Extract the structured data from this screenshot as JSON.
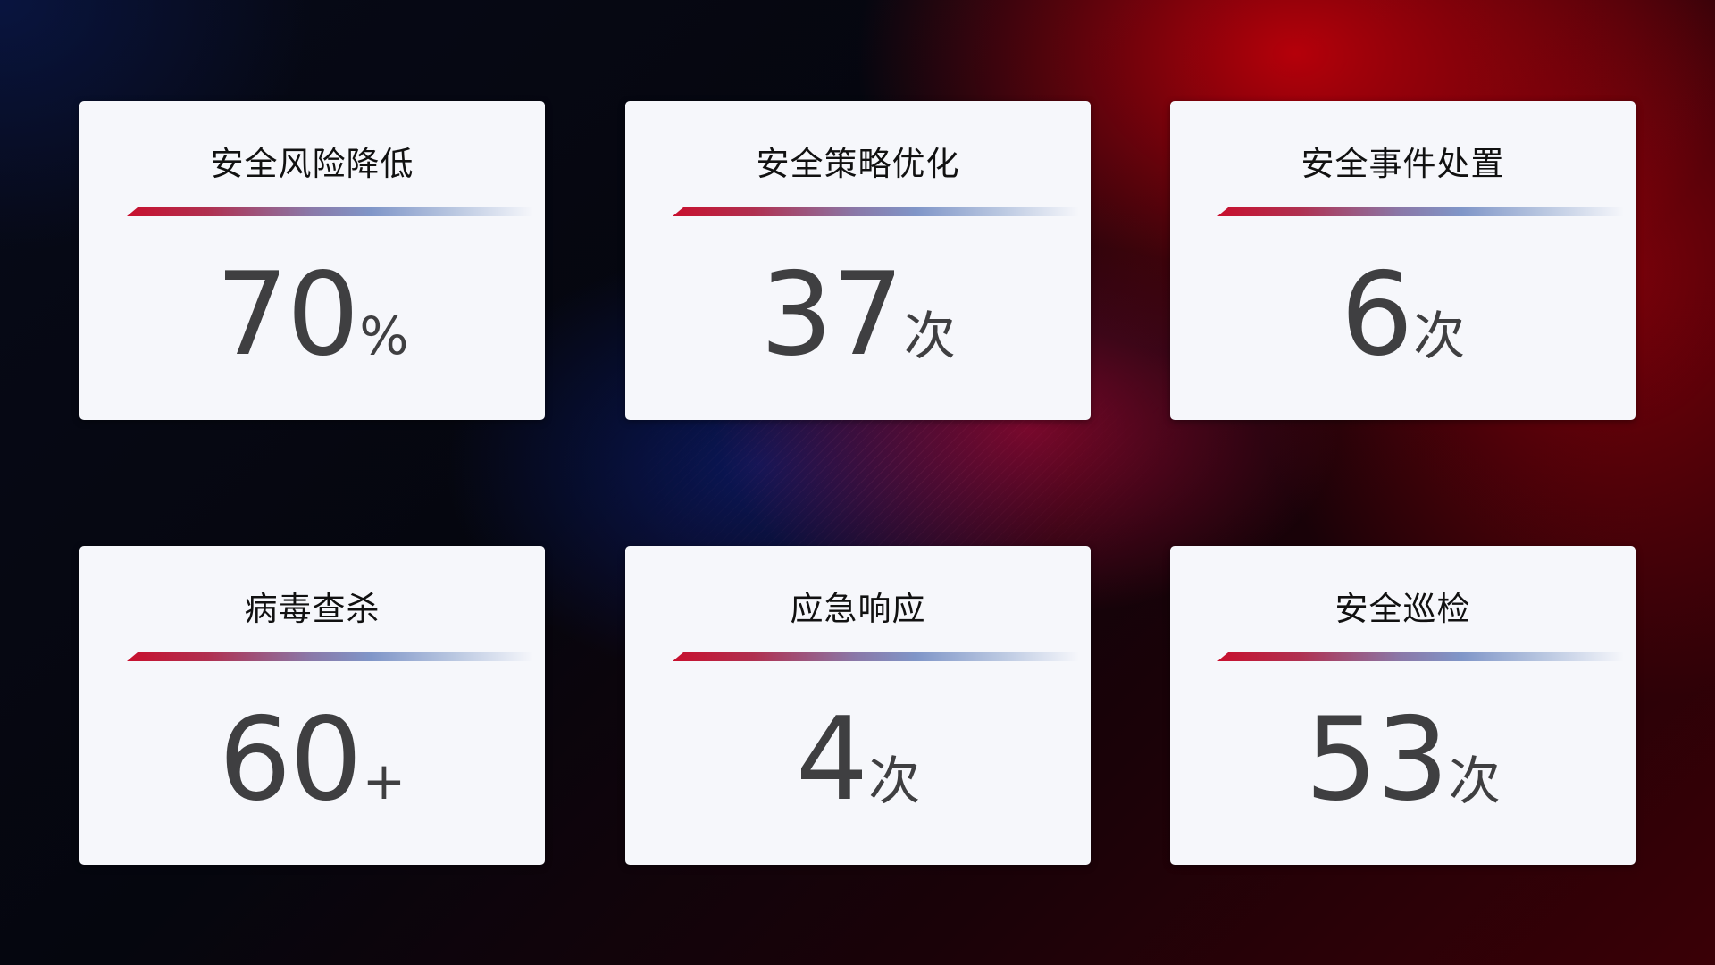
{
  "cards": [
    {
      "title": "安全风险降低",
      "value": "70",
      "unit": "%"
    },
    {
      "title": "安全策略优化",
      "value": "37",
      "unit": "次"
    },
    {
      "title": "安全事件处置",
      "value": "6",
      "unit": "次"
    },
    {
      "title": "病毒查杀",
      "value": "60",
      "unit": "+"
    },
    {
      "title": "应急响应",
      "value": "4",
      "unit": "次"
    },
    {
      "title": "安全巡检",
      "value": "53",
      "unit": "次"
    }
  ],
  "colors": {
    "accent_red": "#c8102e",
    "accent_blue": "#8096c8",
    "card_bg": "#f6f7fb",
    "number": "#3f3f41"
  }
}
